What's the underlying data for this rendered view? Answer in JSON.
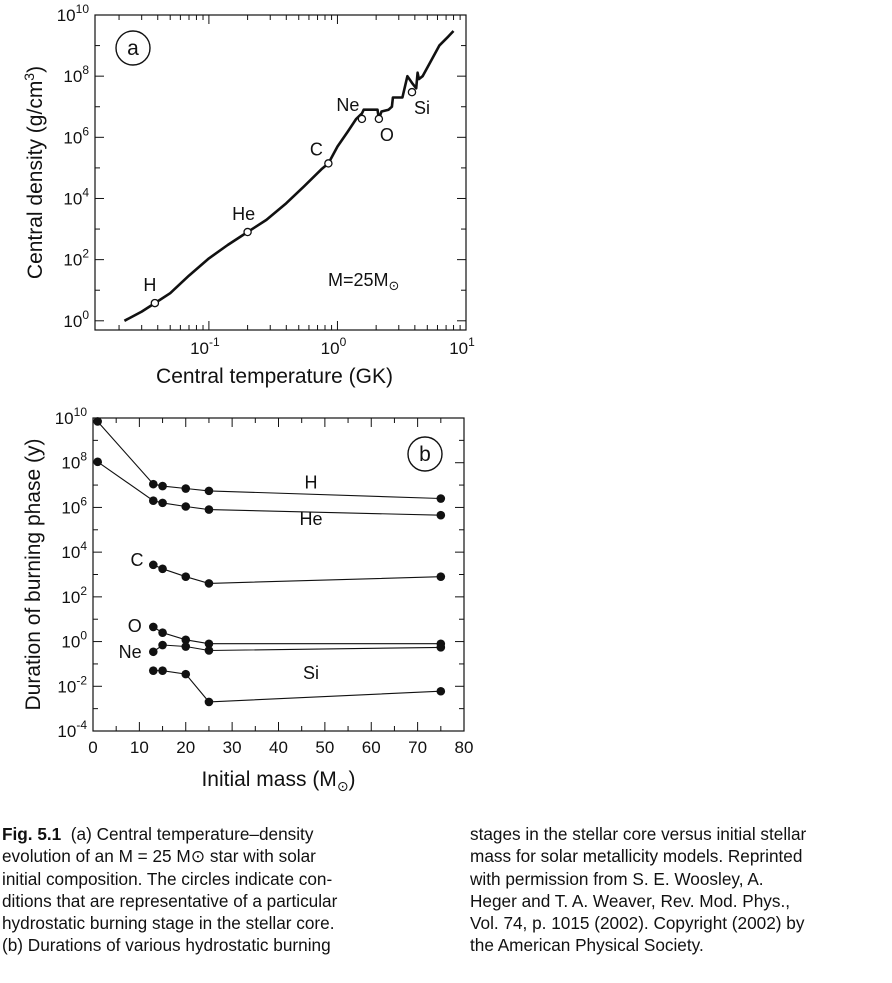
{
  "chart_data": [
    {
      "type": "line",
      "panel_label": "a",
      "xlabel": "Central temperature  (GK)",
      "ylabel": "Central density  (g/cm",
      "ylabel_sup": "3",
      "ylabel_close": ")",
      "xscale": "log",
      "yscale": "log",
      "xlim": [
        0.013,
        10
      ],
      "ylim": [
        0.5,
        10000000000
      ],
      "x_ticks": [
        {
          "base": "10",
          "exp": "-1",
          "value": 0.1
        },
        {
          "base": "10",
          "exp": "0",
          "value": 1
        },
        {
          "base": "10",
          "exp": "1",
          "value": 10
        }
      ],
      "y_ticks": [
        {
          "base": "10",
          "exp": "0",
          "value": 1
        },
        {
          "base": "10",
          "exp": "2",
          "value": 100
        },
        {
          "base": "10",
          "exp": "4",
          "value": 10000
        },
        {
          "base": "10",
          "exp": "6",
          "value": 1000000
        },
        {
          "base": "10",
          "exp": "8",
          "value": 100000000
        },
        {
          "base": "10",
          "exp": "10",
          "value": 10000000000
        }
      ],
      "annotation": {
        "text": "M=25M",
        "symbol": "⊙"
      },
      "series": [
        {
          "x": [
            0.022,
            0.03,
            0.038,
            0.05,
            0.07,
            0.1,
            0.14,
            0.2,
            0.28,
            0.4,
            0.55,
            0.75,
            0.85,
            1.0,
            1.2,
            1.4,
            1.55,
            1.6,
            1.9,
            2.05,
            2.1,
            2.2,
            2.5,
            2.65,
            2.7,
            3.0,
            3.2,
            3.5,
            3.8,
            4.1,
            4.2,
            4.3,
            4.6,
            5.3,
            6.2,
            7.3,
            8.0
          ],
          "y": [
            1.0,
            2.0,
            3.8,
            8.0,
            30.0,
            110.0,
            300.0,
            800.0,
            2000.0,
            7000.0,
            25000.0,
            90000.0,
            140000.0,
            500000.0,
            1500000.0,
            4000000.0,
            6000000.0,
            8000000.0,
            8000000.0,
            8000000.0,
            4000000.0,
            7000000.0,
            8000000.0,
            10000000.0,
            20000000.0,
            20000000.0,
            20000000.0,
            100000000.0,
            60000000.0,
            40000000.0,
            130000000.0,
            80000000.0,
            100000000.0,
            300000000.0,
            1000000000.0,
            2000000000.0,
            3000000000.0
          ]
        }
      ],
      "markers": [
        {
          "label": "H",
          "x": 0.038,
          "y": 3.8
        },
        {
          "label": "He",
          "x": 0.2,
          "y": 800.0
        },
        {
          "label": "C",
          "x": 0.85,
          "y": 140000.0
        },
        {
          "label": "Ne",
          "x": 1.55,
          "y": 4000000.0
        },
        {
          "label": "O",
          "x": 2.1,
          "y": 4000000.0
        },
        {
          "label": "Si",
          "x": 3.8,
          "y": 30000000.0
        }
      ]
    },
    {
      "type": "line",
      "panel_label": "b",
      "xlabel": "Initial mass  (M",
      "xlabel_symbol": "⊙",
      "xlabel_close": ")",
      "ylabel": "Duration of burning phase  (y)",
      "yscale": "log",
      "xlim": [
        0,
        80
      ],
      "ylim": [
        0.0001,
        10000000000
      ],
      "x_ticks": [
        {
          "label": "0",
          "value": 0
        },
        {
          "label": "10",
          "value": 10
        },
        {
          "label": "20",
          "value": 20
        },
        {
          "label": "30",
          "value": 30
        },
        {
          "label": "40",
          "value": 40
        },
        {
          "label": "50",
          "value": 50
        },
        {
          "label": "60",
          "value": 60
        },
        {
          "label": "70",
          "value": 70
        },
        {
          "label": "80",
          "value": 80
        }
      ],
      "y_ticks": [
        {
          "base": "10",
          "exp": "-4",
          "value": 0.0001
        },
        {
          "base": "10",
          "exp": "-2",
          "value": 0.01
        },
        {
          "base": "10",
          "exp": "0",
          "value": 1
        },
        {
          "base": "10",
          "exp": "2",
          "value": 100
        },
        {
          "base": "10",
          "exp": "4",
          "value": 10000
        },
        {
          "base": "10",
          "exp": "6",
          "value": 1000000
        },
        {
          "base": "10",
          "exp": "8",
          "value": 100000000
        },
        {
          "base": "10",
          "exp": "10",
          "value": 10000000000
        }
      ],
      "series": [
        {
          "name": "H",
          "x": [
            1,
            13,
            15,
            20,
            25,
            75
          ],
          "y": [
            7000000000.0,
            11000000.0,
            9000000.0,
            7000000.0,
            5500000.0,
            2500000.0
          ]
        },
        {
          "name": "He",
          "x": [
            1,
            13,
            15,
            20,
            25,
            75
          ],
          "y": [
            110000000.0,
            2000000.0,
            1600000.0,
            1100000.0,
            800000.0,
            450000.0
          ]
        },
        {
          "name": "C",
          "x": [
            13,
            15,
            20,
            25,
            75
          ],
          "y": [
            2700.0,
            1800.0,
            800.0,
            400.0,
            800.0
          ]
        },
        {
          "name": "O",
          "x": [
            13,
            15,
            20,
            25,
            75
          ],
          "y": [
            4.5,
            2.5,
            1.2,
            0.8,
            0.8
          ]
        },
        {
          "name": "Ne",
          "x": [
            13,
            15,
            20,
            25,
            75
          ],
          "y": [
            0.35,
            0.7,
            0.6,
            0.4,
            0.55
          ]
        },
        {
          "name": "Si",
          "x": [
            13,
            15,
            20,
            25,
            75
          ],
          "y": [
            0.05,
            0.05,
            0.035,
            0.002,
            0.006
          ]
        }
      ],
      "series_label_positions": [
        {
          "name": "H",
          "x": 47,
          "y": 13000000.0
        },
        {
          "name": "He",
          "x": 47,
          "y": 300000.0
        },
        {
          "name": "C",
          "x": 9.5,
          "y": 4500.0
        },
        {
          "name": "O",
          "x": 9,
          "y": 5.0
        },
        {
          "name": "Ne",
          "x": 8,
          "y": 0.35
        },
        {
          "name": "Si",
          "x": 47,
          "y": 0.04
        }
      ]
    }
  ],
  "caption": {
    "fig_label": "Fig. 5.1",
    "left_lines": [
      "(a) Central temperature–density",
      "evolution of an M = 25 M⊙ star with solar",
      "initial composition. The circles indicate con-",
      "ditions that are representative of a particular",
      "hydrostatic burning stage in the stellar core.",
      "(b) Durations of various hydrostatic burning"
    ],
    "right_lines": [
      "stages in the stellar core versus initial stellar",
      "mass for solar metallicity models. Reprinted",
      "with permission from S. E. Woosley, A.",
      "Heger and T. A. Weaver, Rev. Mod. Phys.,",
      "Vol. 74, p. 1015 (2002). Copyright (2002) by",
      "the American Physical Society."
    ]
  }
}
